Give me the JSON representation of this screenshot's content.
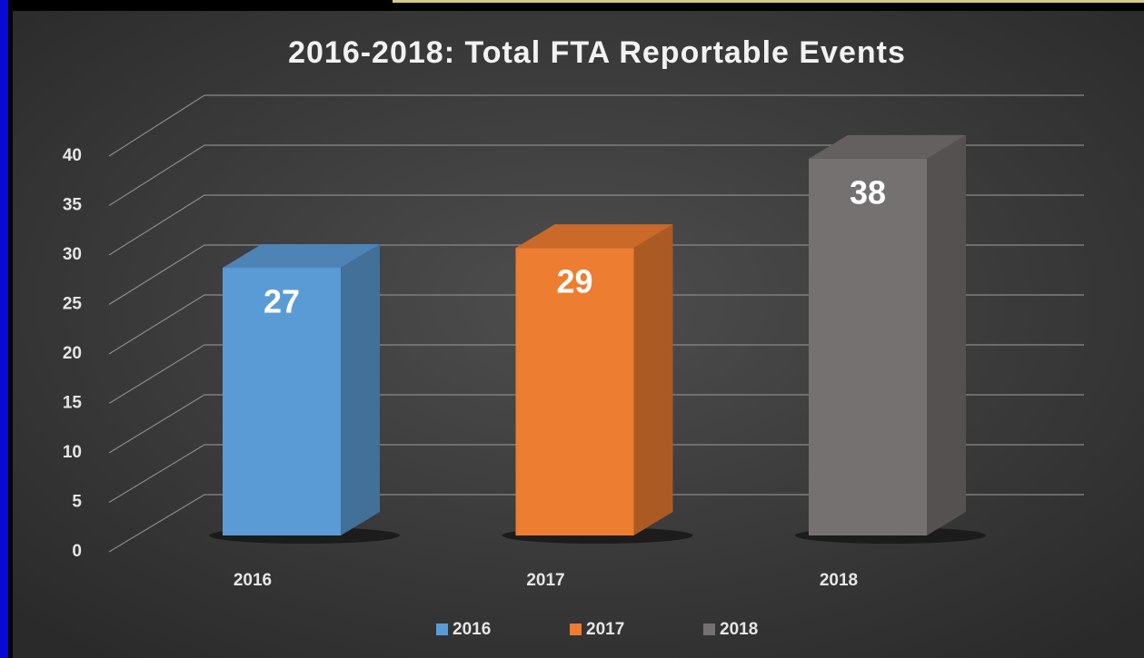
{
  "chart_data": {
    "type": "bar3d",
    "title": "2016-2018: Total FTA Reportable Events",
    "categories": [
      "2016",
      "2017",
      "2018"
    ],
    "values": [
      27,
      29,
      38
    ],
    "colors": [
      "#5b9bd5",
      "#ed7d31",
      "#767171"
    ],
    "ylim": [
      0,
      40
    ],
    "yticks": [
      0,
      5,
      10,
      15,
      20,
      25,
      30,
      35,
      40
    ],
    "grid": true,
    "legend": "bottom"
  }
}
